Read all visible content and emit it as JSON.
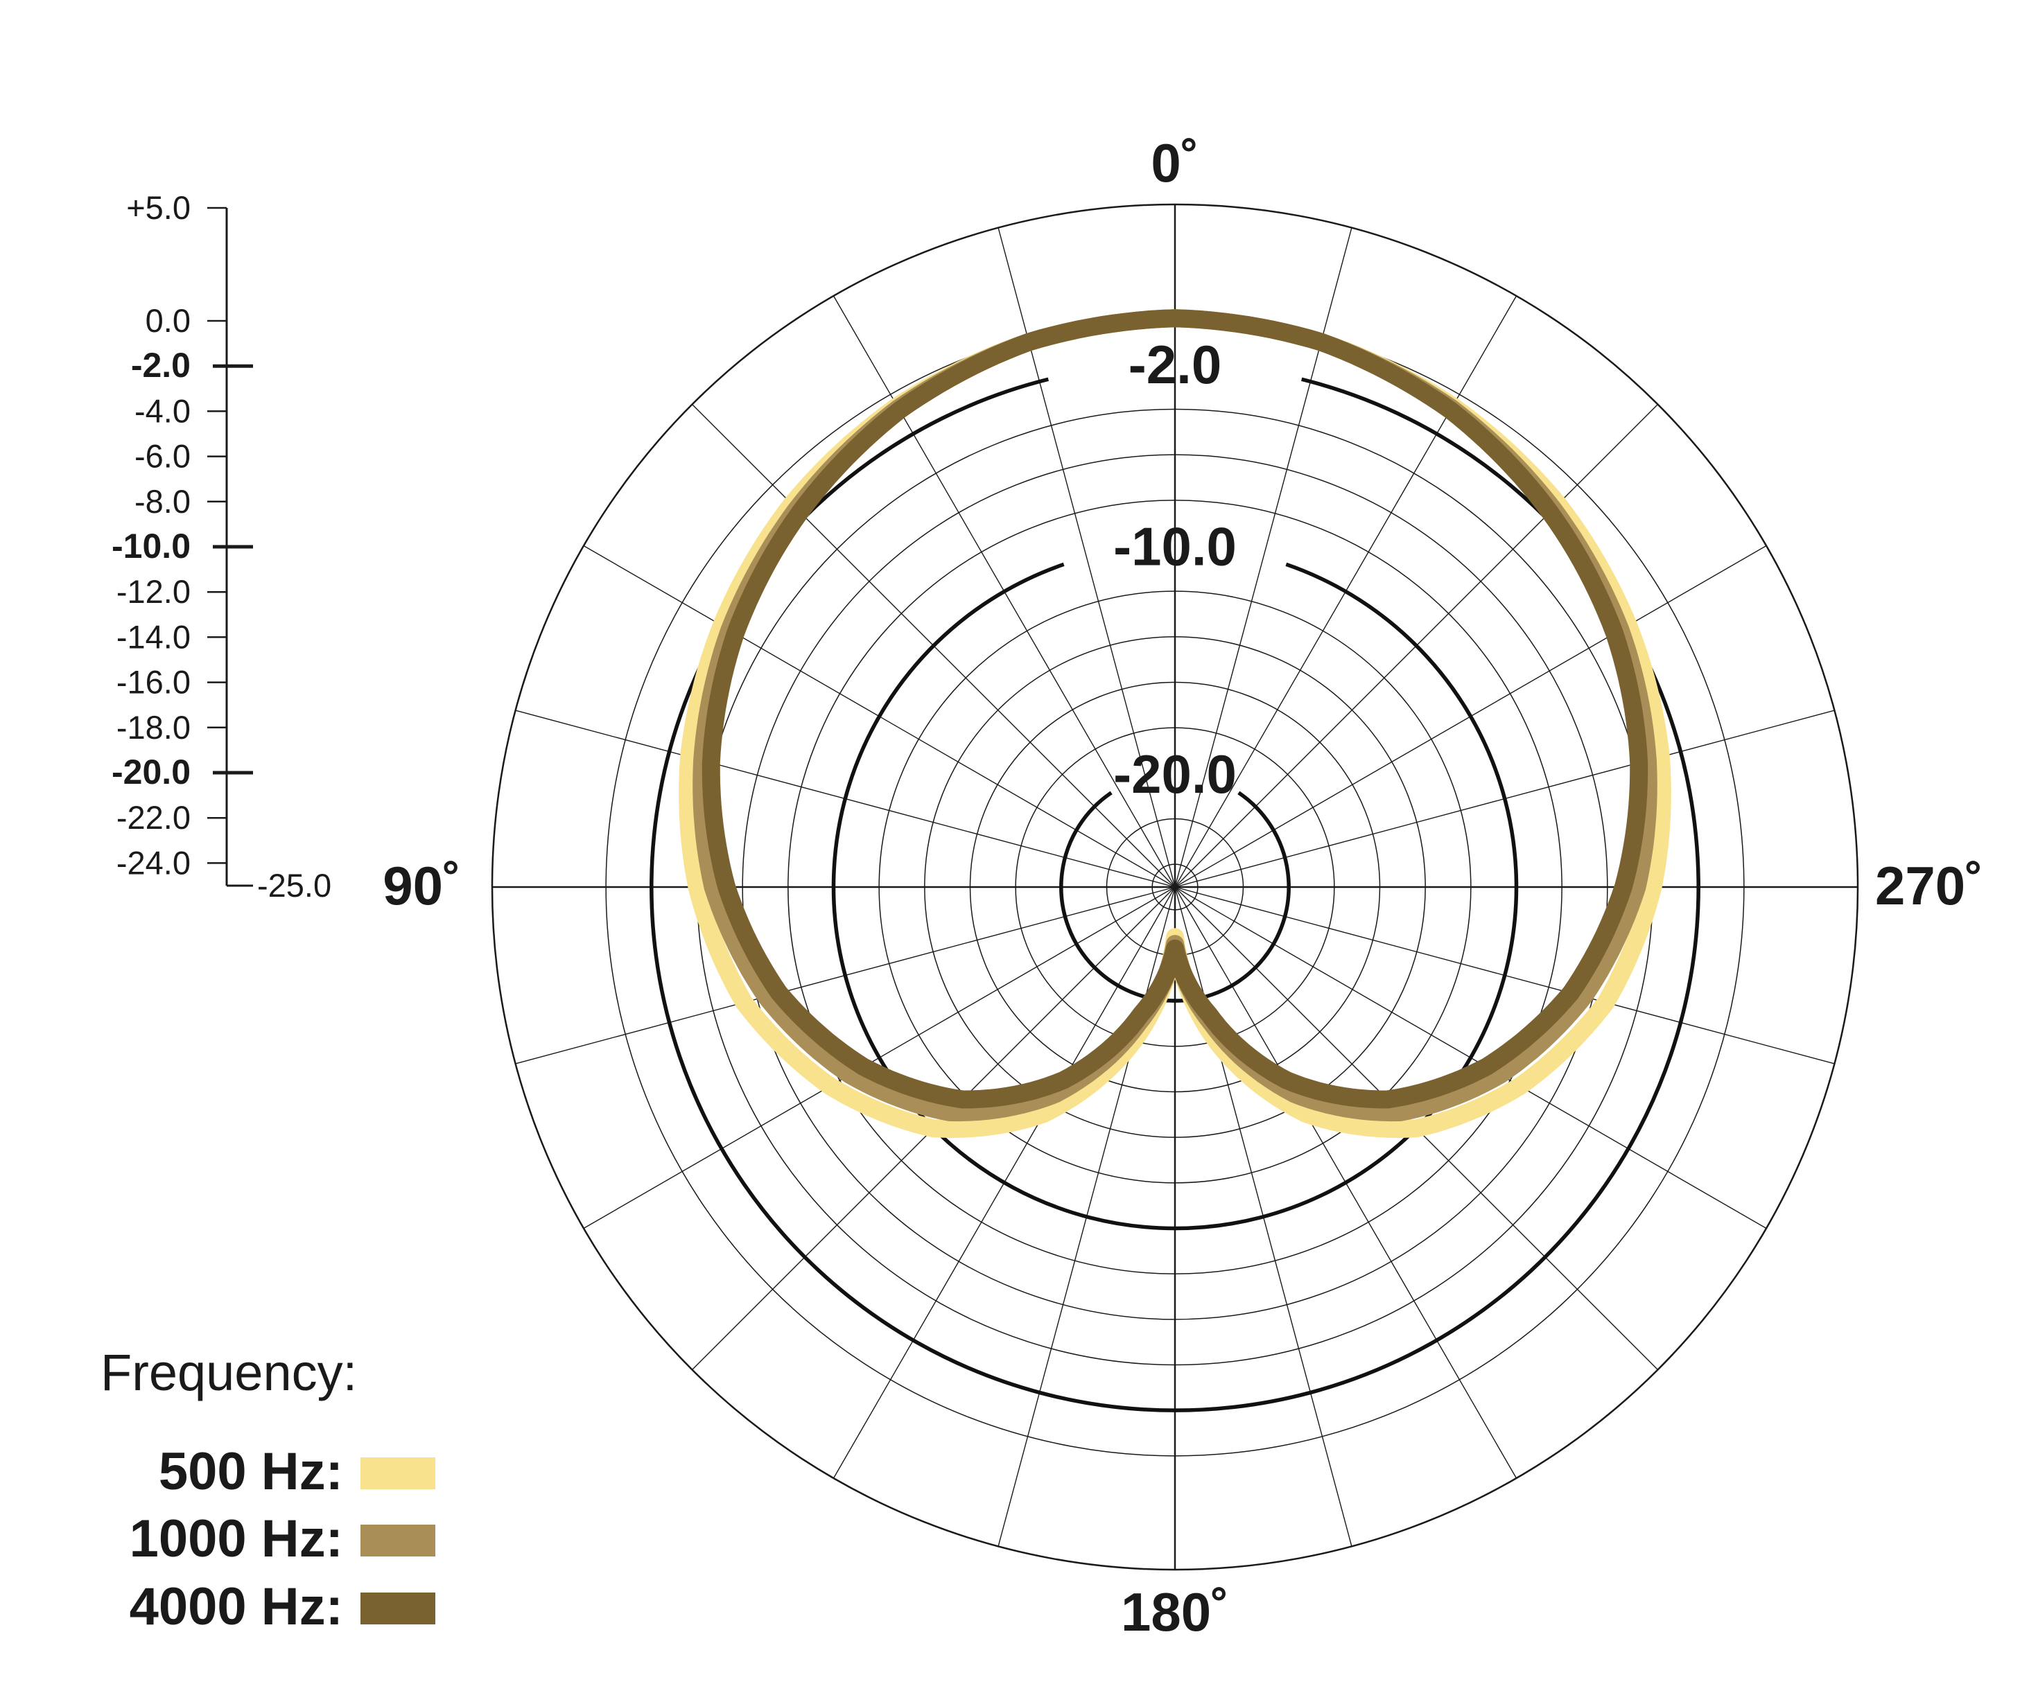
{
  "chart_data": {
    "type": "polar",
    "title": "",
    "angle_labels": [
      {
        "angle": 0,
        "text": "0˚"
      },
      {
        "angle": 90,
        "text": "90˚"
      },
      {
        "angle": 180,
        "text": "180˚"
      },
      {
        "angle": 270,
        "text": "270˚"
      }
    ],
    "angle_direction": "counterclockwise",
    "angle_step": 15,
    "r_range": [
      -25,
      5
    ],
    "r_circles": [
      0,
      -2,
      -4,
      -6,
      -8,
      -10,
      -12,
      -14,
      -16,
      -18,
      -20,
      -22,
      -24
    ],
    "r_major": [
      -2,
      -10,
      -20
    ],
    "r_major_labels": [
      "-2.0",
      "-10.0",
      "-20.0"
    ],
    "scale": {
      "ticks": [
        "+5.0",
        "0.0",
        "-2.0",
        "-4.0",
        "-6.0",
        "-8.0",
        "-10.0",
        "-12.0",
        "-14.0",
        "-16.0",
        "-18.0",
        "-20.0",
        "-22.0",
        "-24.0"
      ],
      "tick_values": [
        5,
        0,
        -2,
        -4,
        -6,
        -8,
        -10,
        -12,
        -14,
        -16,
        -18,
        -20,
        -22,
        -24
      ],
      "bold_ticks": [
        "-2.0",
        "-10.0",
        "-20.0"
      ],
      "bottom_label": "-25.0"
    },
    "legend": {
      "title": "Frequency:",
      "placement": "bottom-left"
    },
    "series": [
      {
        "name": "500 Hz:",
        "color": "#f8e28e",
        "angles": [
          0,
          15,
          30,
          45,
          60,
          75,
          90,
          105,
          120,
          135,
          150,
          165,
          180,
          195,
          210,
          225,
          240,
          255,
          270,
          285,
          300,
          315,
          330,
          345,
          360
        ],
        "values": [
          0.0,
          -0.2,
          -0.6,
          -1.2,
          -2.0,
          -2.9,
          -4.0,
          -5.4,
          -7.5,
          -10.0,
          -13.5,
          -18.0,
          -22.8,
          -18.0,
          -13.5,
          -10.0,
          -7.5,
          -5.4,
          -4.0,
          -2.9,
          -2.0,
          -1.2,
          -0.6,
          -0.2,
          0.0
        ]
      },
      {
        "name": "1000 Hz:",
        "color": "#a98e58",
        "angles": [
          0,
          15,
          30,
          45,
          60,
          75,
          90,
          105,
          120,
          135,
          150,
          165,
          180,
          195,
          210,
          225,
          240,
          255,
          270,
          285,
          300,
          315,
          330,
          345,
          360
        ],
        "values": [
          0.0,
          -0.2,
          -0.7,
          -1.5,
          -2.4,
          -3.5,
          -4.7,
          -6.4,
          -8.5,
          -11.0,
          -14.5,
          -18.8,
          -22.5,
          -18.8,
          -14.5,
          -11.0,
          -8.5,
          -6.4,
          -4.7,
          -3.5,
          -2.4,
          -1.5,
          -0.7,
          -0.2,
          0.0
        ]
      },
      {
        "name": "4000 Hz:",
        "color": "#7a6230",
        "angles": [
          0,
          15,
          30,
          45,
          60,
          75,
          90,
          105,
          120,
          135,
          150,
          165,
          180,
          195,
          210,
          225,
          240,
          255,
          270,
          285,
          300,
          315,
          330,
          345,
          360
        ],
        "values": [
          0.0,
          -0.2,
          -0.8,
          -1.7,
          -2.7,
          -3.9,
          -5.3,
          -7.0,
          -9.2,
          -11.8,
          -15.2,
          -19.2,
          -22.3,
          -19.2,
          -15.2,
          -11.8,
          -9.2,
          -7.0,
          -5.3,
          -3.9,
          -2.7,
          -1.7,
          -0.8,
          -0.2,
          0.0
        ]
      }
    ]
  }
}
